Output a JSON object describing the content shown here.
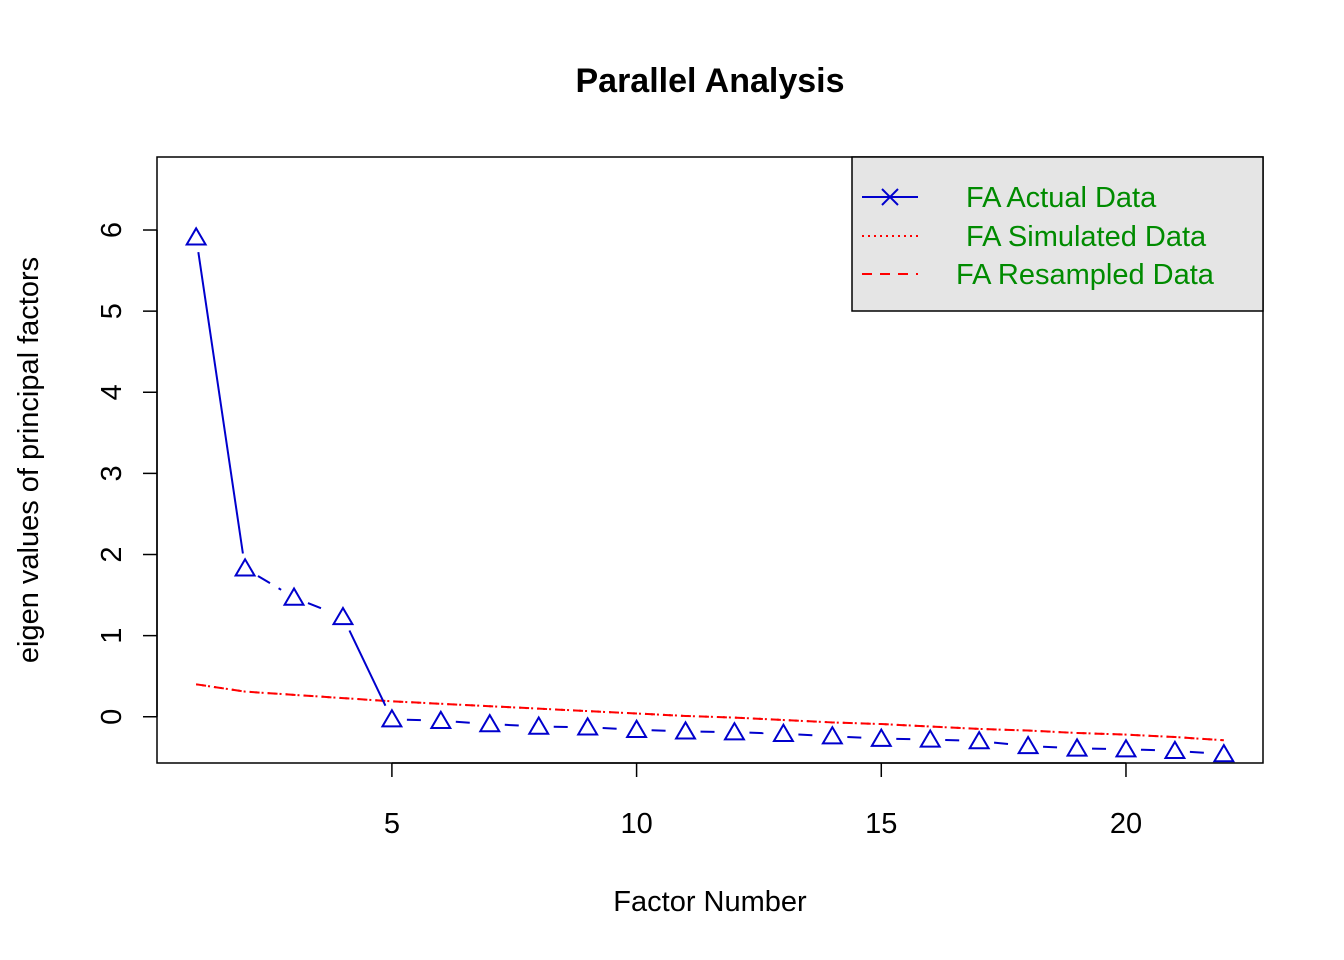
{
  "chart_data": {
    "type": "line",
    "title": "Parallel Analysis",
    "xlabel": "Factor Number",
    "ylabel": "eigen values of principal factors",
    "xlim": [
      0.2,
      22.8
    ],
    "ylim": [
      -0.57,
      6.9
    ],
    "x_ticks": [
      5,
      10,
      15,
      20
    ],
    "y_ticks": [
      0,
      1,
      2,
      3,
      4,
      5,
      6
    ],
    "grid": false,
    "legend_placement": "top-right",
    "colors": {
      "actual": "#0000cd",
      "simulated": "#ff0000",
      "resampled": "#ff0000",
      "legend_text": "#008b00",
      "legend_background": "#e5e5e5"
    },
    "x": [
      1,
      2,
      3,
      4,
      5,
      6,
      7,
      8,
      9,
      10,
      11,
      12,
      13,
      14,
      15,
      16,
      17,
      18,
      19,
      20,
      21,
      22
    ],
    "series": [
      {
        "name": "FA  Actual Data",
        "key": "actual",
        "line_style": "solid",
        "marker": "triangle",
        "values": [
          5.91,
          1.83,
          1.47,
          1.23,
          -0.03,
          -0.05,
          -0.09,
          -0.12,
          -0.13,
          -0.16,
          -0.18,
          -0.19,
          -0.21,
          -0.24,
          -0.27,
          -0.28,
          -0.3,
          -0.36,
          -0.39,
          -0.4,
          -0.42,
          -0.46
        ]
      },
      {
        "name": "FA  Simulated Data",
        "key": "simulated",
        "line_style": "dotted",
        "values": [
          0.4,
          0.31,
          0.27,
          0.23,
          0.19,
          0.16,
          0.13,
          0.1,
          0.07,
          0.04,
          0.01,
          -0.01,
          -0.04,
          -0.07,
          -0.09,
          -0.12,
          -0.15,
          -0.17,
          -0.2,
          -0.22,
          -0.25,
          -0.29
        ]
      },
      {
        "name": "FA  Resampled Data",
        "key": "resampled",
        "line_style": "dashed",
        "values": [
          0.4,
          0.31,
          0.27,
          0.23,
          0.19,
          0.16,
          0.13,
          0.1,
          0.07,
          0.04,
          0.01,
          -0.01,
          -0.04,
          -0.07,
          -0.09,
          -0.12,
          -0.15,
          -0.17,
          -0.2,
          -0.22,
          -0.25,
          -0.29
        ]
      }
    ]
  }
}
